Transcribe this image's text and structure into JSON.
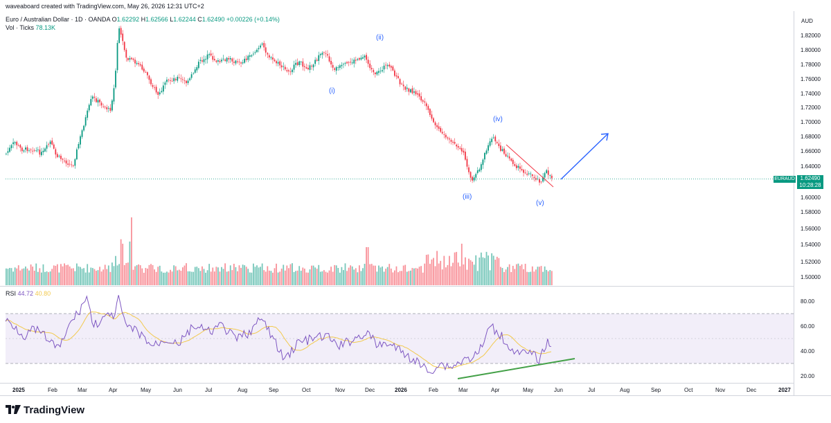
{
  "header": {
    "attribution": "waveaboard created with TradingView.com, May 26, 2026 12:31 UTC+2",
    "symbol_name": "Euro / Australian Dollar · 1D · OANDA",
    "o_label": "O",
    "o_value": "1.62292",
    "h_label": "H",
    "h_value": "1.62566",
    "l_label": "L",
    "l_value": "1.62244",
    "c_label": "C",
    "c_value": "1.62490",
    "change": "+0.00226 (+0.14%)",
    "vol_label": "Vol · Ticks",
    "vol_value": "78.13K"
  },
  "price_axis": {
    "currency": "AUD",
    "labels": [
      "1.82000",
      "1.80000",
      "1.78000",
      "1.76000",
      "1.74000",
      "1.72000",
      "1.70000",
      "1.68000",
      "1.66000",
      "1.64000",
      "1.60000",
      "1.58000",
      "1.56000",
      "1.54000",
      "1.52000",
      "1.50000"
    ],
    "symbol_tag": "EURAUD",
    "last_price": "1.62490",
    "countdown": "10:28:28"
  },
  "rsi": {
    "label": "RSI",
    "value": "44.72",
    "ma_value": "40.80",
    "axis_labels": [
      "80.00",
      "60.00",
      "40.00",
      "20.00"
    ]
  },
  "time_axis": {
    "labels": [
      "2025",
      "Feb",
      "Mar",
      "Apr",
      "May",
      "Jun",
      "Jul",
      "Aug",
      "Sep",
      "Oct",
      "Nov",
      "Dec",
      "2026",
      "Feb",
      "Mar",
      "Apr",
      "May",
      "Jun",
      "Jul",
      "Aug",
      "Sep",
      "Oct",
      "Nov",
      "Dec",
      "2027"
    ]
  },
  "wave_labels": [
    "(i)",
    "(ii)",
    "(iii)",
    "(iv)",
    "(v)"
  ],
  "colors": {
    "up": "#089981",
    "down": "#f23645",
    "rsi_line": "#7e57c2",
    "rsi_ma": "#f2c94c",
    "rsi_band": "#ede7f6",
    "wave_label": "#2962ff",
    "trend_green": "#43a047",
    "trend_red": "#f23645",
    "arrow_blue": "#2962ff"
  },
  "footer": {
    "brand": "TradingView",
    "logo_icon": "tradingview-logo-icon"
  }
}
